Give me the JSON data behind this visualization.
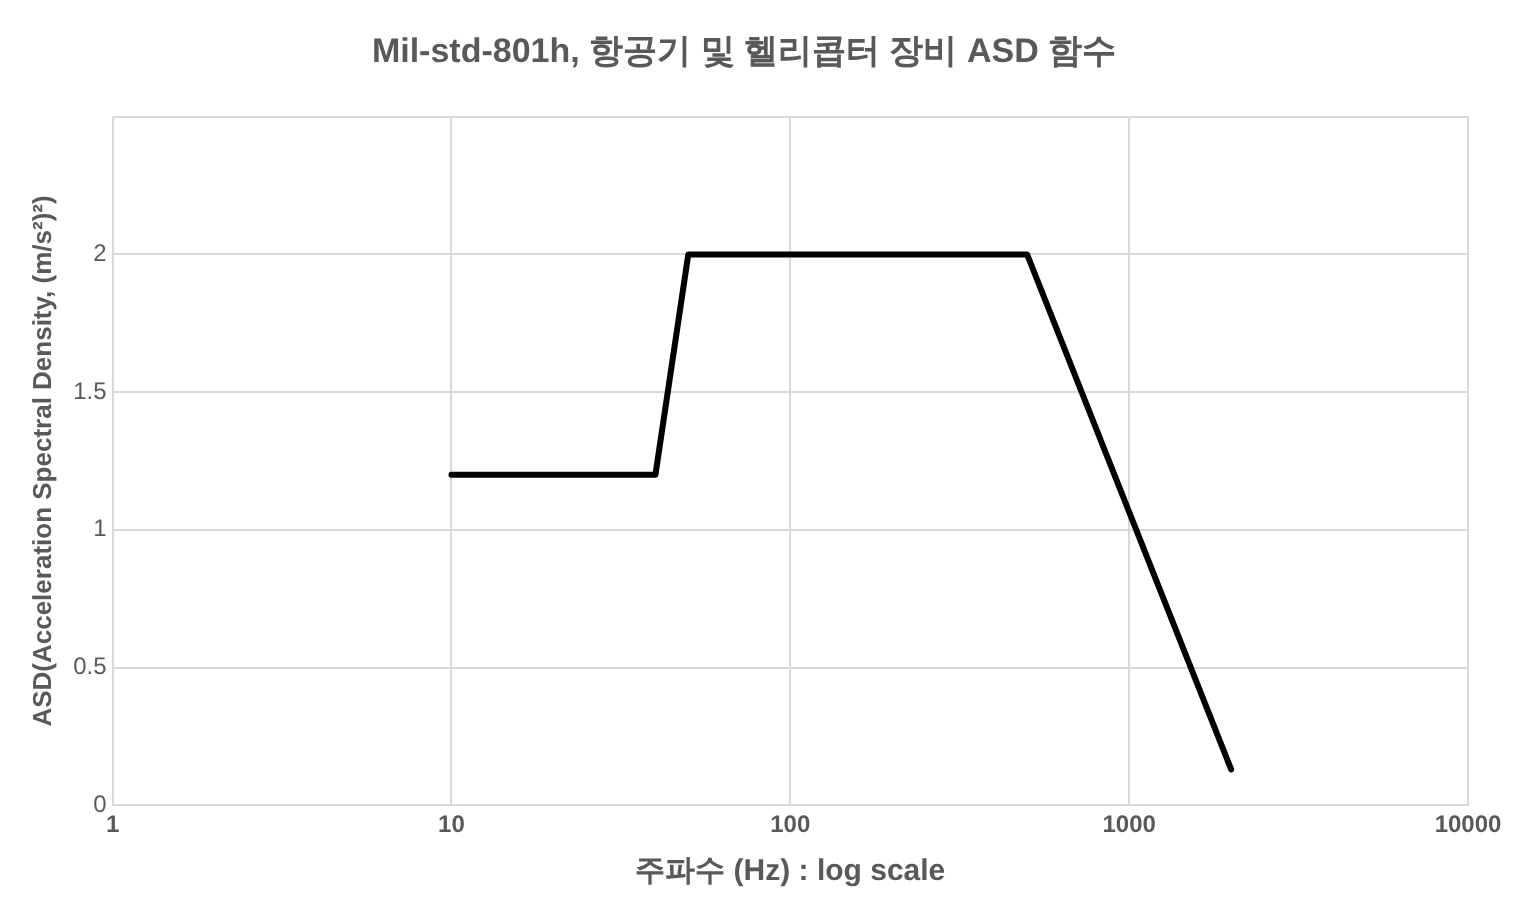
{
  "chart_data": {
    "type": "line",
    "title": "Mil-std-801h, 항공기 및 헬리콥터 장비 ASD 함수",
    "xlabel": "주파수 (Hz) : log scale",
    "ylabel": "ASD(Acceleration Spectral Density, (m/s²)²)",
    "x": [
      10,
      40,
      50,
      500,
      2000
    ],
    "series": [
      {
        "color": "#000000",
        "values": [
          1.2,
          1.2,
          2,
          2,
          0.13
        ]
      }
    ],
    "log": "x",
    "xlim": [
      1,
      10000
    ],
    "xticks": [
      1,
      10,
      100,
      1000,
      10000
    ],
    "ylim": [
      0,
      2.5
    ],
    "yticks": [
      0,
      0.5,
      1,
      1.5,
      2,
      {
        "value": 2.5,
        "label": null
      }
    ],
    "grid": true,
    "legend": false,
    "marker": "none",
    "line_style": "solid"
  }
}
